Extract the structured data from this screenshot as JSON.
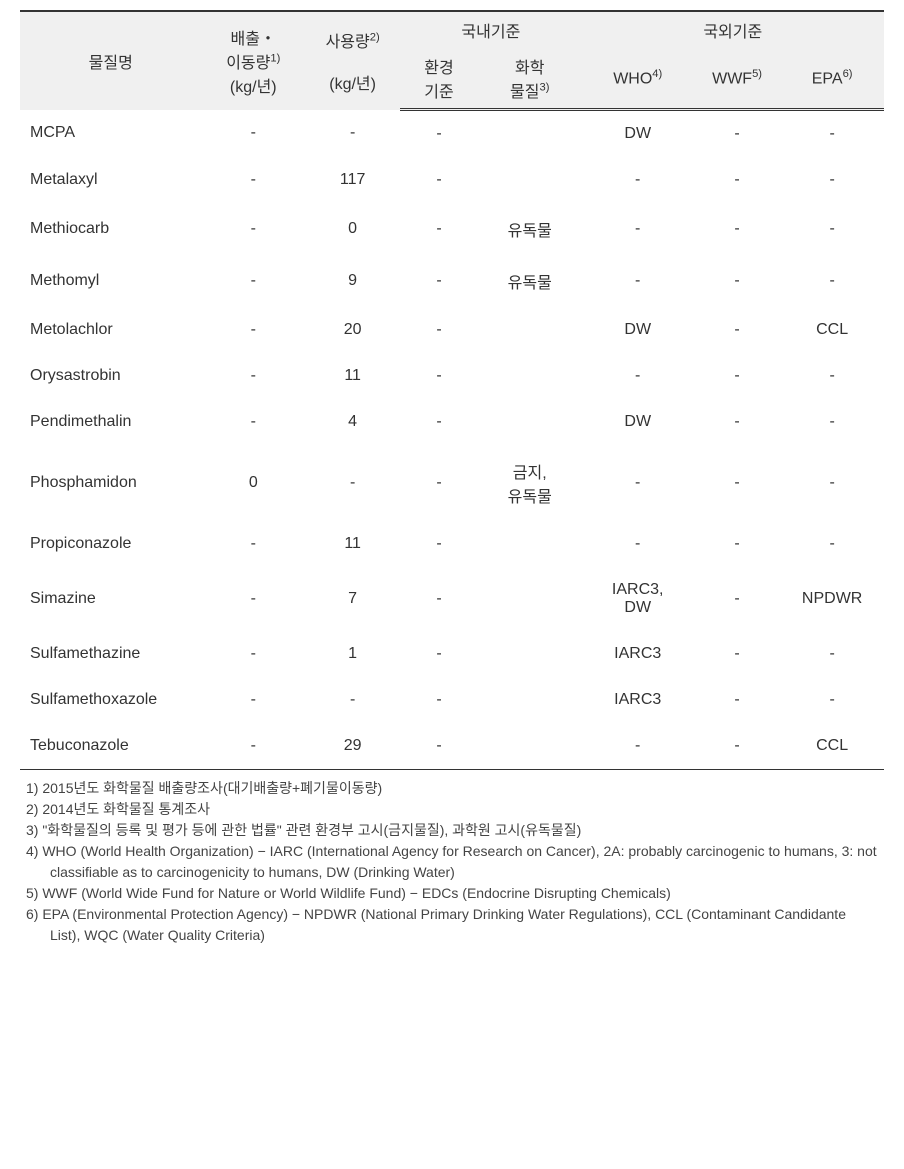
{
  "header": {
    "substance": "물질명",
    "emission_label": "배출・",
    "emission_label2": "이동량",
    "emission_sup": "1)",
    "emission_unit": "(kg/년)",
    "usage_label": "사용량",
    "usage_sup": "2)",
    "usage_unit": "(kg/년)",
    "domestic": "국내기준",
    "env_std": "환경",
    "env_std2": "기준",
    "chem_label": "화학",
    "chem_label2": "물질",
    "chem_sup": "3)",
    "foreign": "국외기준",
    "who": "WHO",
    "who_sup": "4)",
    "wwf": "WWF",
    "wwf_sup": "5)",
    "epa": "EPA",
    "epa_sup": "6)"
  },
  "rows": [
    {
      "n": "MCPA",
      "e": "-",
      "u": "-",
      "env": "-",
      "chem": "",
      "who": "DW",
      "wwf": "-",
      "epa": "-"
    },
    {
      "n": "Metalaxyl",
      "e": "-",
      "u": "117",
      "env": "-",
      "chem": "",
      "who": "-",
      "wwf": "-",
      "epa": "-"
    },
    {
      "n": "Methiocarb",
      "e": "-",
      "u": "0",
      "env": "-",
      "chem": "유독물",
      "who": "-",
      "wwf": "-",
      "epa": "-"
    },
    {
      "n": "Methomyl",
      "e": "-",
      "u": "9",
      "env": "-",
      "chem": "유독물",
      "who": "-",
      "wwf": "-",
      "epa": "-"
    },
    {
      "n": "Metolachlor",
      "e": "-",
      "u": "20",
      "env": "-",
      "chem": "",
      "who": "DW",
      "wwf": "-",
      "epa": "CCL"
    },
    {
      "n": "Orysastrobin",
      "e": "-",
      "u": "11",
      "env": "-",
      "chem": "",
      "who": "-",
      "wwf": "-",
      "epa": "-"
    },
    {
      "n": "Pendimethalin",
      "e": "-",
      "u": "4",
      "env": "-",
      "chem": "",
      "who": "DW",
      "wwf": "-",
      "epa": "-"
    },
    {
      "n": "Phosphamidon",
      "e": "0",
      "u": "-",
      "env": "-",
      "chem": "금지,<br>유독물",
      "who": "-",
      "wwf": "-",
      "epa": "-"
    },
    {
      "n": "Propiconazole",
      "e": "-",
      "u": "11",
      "env": "-",
      "chem": "",
      "who": "-",
      "wwf": "-",
      "epa": "-"
    },
    {
      "n": "Simazine",
      "e": "-",
      "u": "7",
      "env": "-",
      "chem": "",
      "who": "IARC3,<br>DW",
      "wwf": "-",
      "epa": "NPDWR"
    },
    {
      "n": "Sulfamethazine",
      "e": "-",
      "u": "1",
      "env": "-",
      "chem": "",
      "who": "IARC3",
      "wwf": "-",
      "epa": "-"
    },
    {
      "n": "Sulfamethoxazole",
      "e": "-",
      "u": "-",
      "env": "-",
      "chem": "",
      "who": "IARC3",
      "wwf": "-",
      "epa": "-"
    },
    {
      "n": "Tebuconazole",
      "e": "-",
      "u": "29",
      "env": "-",
      "chem": "",
      "who": "-",
      "wwf": "-",
      "epa": "CCL"
    }
  ],
  "footnotes": [
    "1) 2015년도 화학물질 배출량조사(대기배출량+폐기물이동량)",
    "2) 2014년도 화학물질 통계조사",
    "3) \"화학물질의 등록 및 평가 등에 관한 법률\" 관련 환경부 고시(금지물질), 과학원 고시(유독물질)",
    "4) WHO (World Health Organization) − IARC (International Agency for Research on Cancer), 2A: probably carcinogenic to humans, 3: not classifiable as to carcinogenicity to humans, DW (Drinking Water)",
    "5) WWF (World Wide Fund for Nature or World Wildlife Fund) − EDCs (Endocrine Disrupting Chemicals)",
    "6) EPA (Environmental Protection Agency) − NPDWR (National Primary Drinking Water Regulations), CCL (Contaminant Candidante List), WQC (Water Quality Criteria)"
  ],
  "colwidths": [
    "21%",
    "12%",
    "11%",
    "9%",
    "12%",
    "13%",
    "10%",
    "12%"
  ]
}
